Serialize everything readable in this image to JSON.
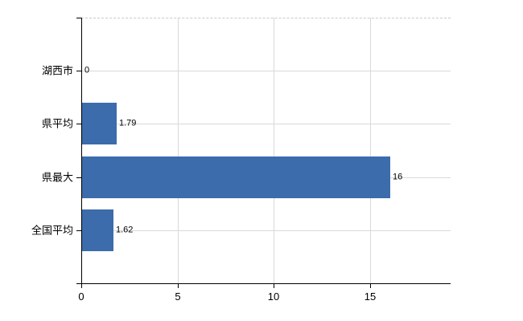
{
  "chart_data": {
    "type": "bar",
    "orientation": "horizontal",
    "title": "",
    "xlabel": "",
    "ylabel": "",
    "categories": [
      "湖西市",
      "県平均",
      "県最大",
      "全国平均"
    ],
    "values": [
      0,
      1.79,
      16,
      1.62
    ],
    "value_labels": [
      "0",
      "1.79",
      "16",
      "1.62"
    ],
    "x_ticks": [
      0,
      5,
      10,
      15
    ],
    "x_tick_labels": [
      "0",
      "5",
      "10",
      "15"
    ],
    "xlim": [
      0,
      19.2
    ],
    "grid": true,
    "legend": false,
    "colors": {
      "bar": "#3c6cab",
      "grid": "#d9d9d9",
      "top_border": "#c9c9c9",
      "axis": "#000000",
      "background": "#ffffff"
    }
  }
}
